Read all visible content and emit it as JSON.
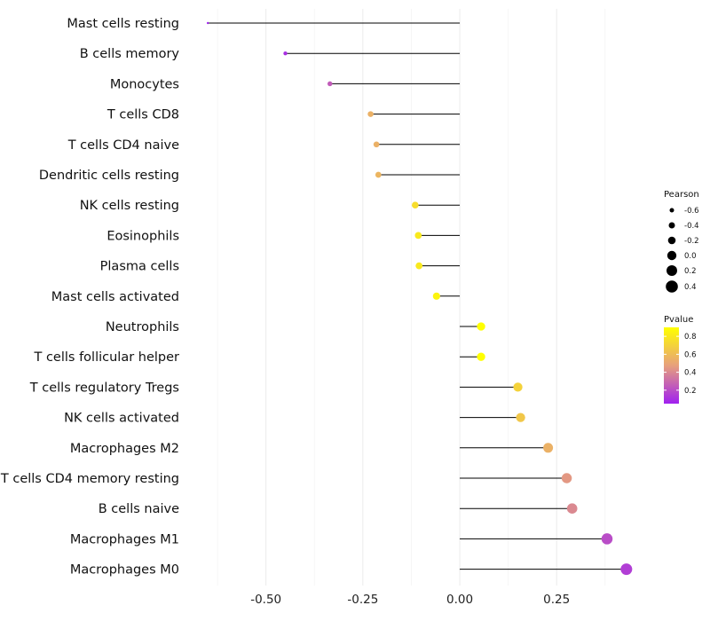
{
  "chart_data": {
    "type": "lollipop",
    "categories": [
      "Mast cells resting",
      "B cells memory",
      "Monocytes",
      "T cells CD8",
      "T cells CD4 naive",
      "Dendritic cells resting",
      "NK cells resting",
      "Eosinophils",
      "Plasma cells",
      "Mast cells activated",
      "Neutrophils",
      "T cells follicular helper",
      "T cells regulatory  Tregs ",
      "NK cells activated",
      "Macrophages M2",
      "T cells CD4 memory resting",
      "B cells naive",
      "Macrophages M1",
      "Macrophages M0"
    ],
    "pearson": [
      -0.65,
      -0.45,
      -0.335,
      -0.23,
      -0.215,
      -0.21,
      -0.115,
      -0.107,
      -0.105,
      -0.06,
      0.055,
      0.055,
      0.15,
      0.157,
      0.228,
      0.276,
      0.29,
      0.38,
      0.43
    ],
    "pvalue": [
      0.05,
      0.1,
      0.25,
      0.55,
      0.55,
      0.57,
      0.75,
      0.8,
      0.8,
      0.85,
      0.9,
      0.9,
      0.7,
      0.65,
      0.55,
      0.45,
      0.4,
      0.2,
      0.15
    ],
    "xticks": [
      -0.5,
      -0.25,
      0.0,
      0.25
    ],
    "xtick_labels": [
      "-0.50",
      "-0.25",
      "0.00",
      "0.25"
    ],
    "xlim": [
      -0.655,
      0.435
    ],
    "xlabel": "",
    "ylabel": "",
    "legend_size": {
      "title": "Pearson",
      "labels": [
        "-0.6",
        "-0.4",
        "-0.2",
        "0.0",
        "0.2",
        "0.4"
      ],
      "values": [
        -0.6,
        -0.4,
        -0.2,
        0.0,
        0.2,
        0.4
      ]
    },
    "legend_color": {
      "title": "Pvalue",
      "labels": [
        "0.8",
        "0.6",
        "0.4",
        "0.2"
      ],
      "values": [
        0.8,
        0.6,
        0.4,
        0.2
      ],
      "range": [
        0.05,
        0.9
      ],
      "low_color": "#a020f0",
      "mid_color": "#e7a07c",
      "high_color": "#ffff00"
    },
    "legend_position": "right",
    "grid": true
  }
}
